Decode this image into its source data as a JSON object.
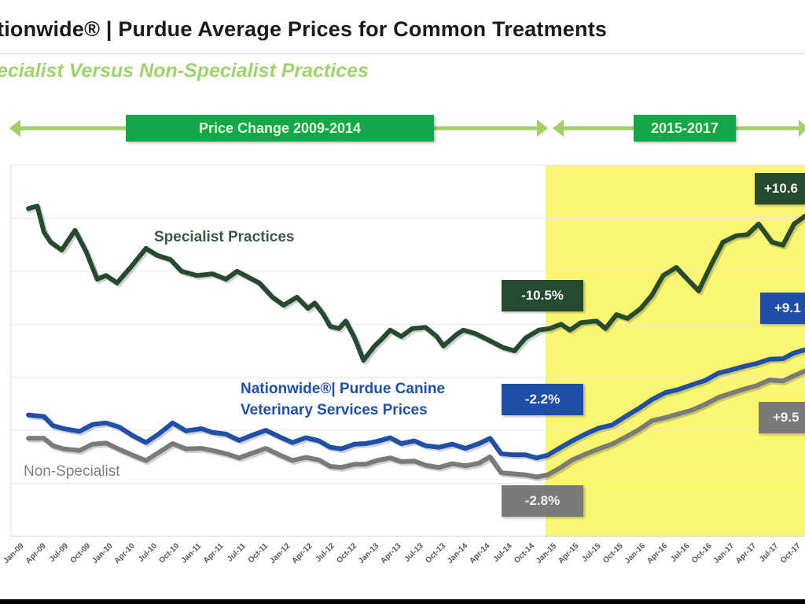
{
  "header": {
    "title": "tionwide® | Purdue Average Prices for Common Treatments",
    "subtitle": "ecialist Versus Non-Specialist Practices"
  },
  "periods": [
    {
      "label": "Price Change 2009-2014"
    },
    {
      "label": "2015-2017"
    }
  ],
  "colors": {
    "specialist": "#254a2f",
    "nationwide": "#1f4fa8",
    "non_specialist": "#7a7a7a",
    "highlight": "#fbf671",
    "period_bar": "#12a84a",
    "period_arrow": "#a3cf6b"
  },
  "chart_data": {
    "type": "line",
    "title": "Nationwide® | Purdue Average Prices for Common Treatments",
    "subtitle": "Specialist Versus Non-Specialist Practices",
    "xlabel": "",
    "ylabel": "",
    "y_units": "relative price index (axis values not shown)",
    "ylim": [
      30,
      100
    ],
    "grid": true,
    "x_ticks": [
      "Jan-09",
      "Apr-09",
      "Jul-09",
      "Oct-09",
      "Jan-10",
      "Apr-10",
      "Jul-10",
      "Oct-10",
      "Jan-11",
      "Apr-11",
      "Jul-11",
      "Oct-11",
      "Jan-12",
      "Apr-12",
      "Jul-12",
      "Oct-12",
      "Jan-13",
      "Apr-13",
      "Jul-13",
      "Oct-13",
      "Jan-14",
      "Apr-14",
      "Jul-14",
      "Oct-14",
      "Jan-15",
      "Apr-15",
      "Jul-15",
      "Oct-15",
      "Jan-16",
      "Apr-16",
      "Jul-16",
      "Oct-16",
      "Jan-17",
      "Apr-17",
      "Jul-17",
      "Oct-17"
    ],
    "x_range_quarters": [
      0,
      35.5
    ],
    "highlight_region": {
      "from_quarter": 23.8,
      "to_quarter": 36,
      "label": "2015-2017"
    },
    "series": [
      {
        "name": "Specialist Practices",
        "label": "Specialist Practices",
        "color_key": "specialist",
        "x": [
          0.5,
          0.9,
          1.2,
          1.5,
          2.0,
          2.6,
          3.1,
          3.6,
          4.0,
          4.5,
          5.1,
          5.8,
          6.3,
          6.9,
          7.4,
          8.1,
          8.8,
          9.4,
          9.9,
          10.4,
          10.9,
          11.5,
          12.0,
          12.6,
          13.1,
          13.4,
          13.8,
          14.1,
          14.5,
          14.8,
          15.2,
          15.6,
          16.1,
          16.4,
          16.8,
          17.3,
          17.8,
          18.4,
          18.9,
          19.2,
          19.8,
          20.1,
          20.6,
          21.2,
          21.9,
          22.4,
          22.9,
          23.5,
          24.0,
          24.5,
          24.9,
          25.4,
          26.1,
          26.5,
          27.0,
          27.5,
          28.1,
          28.6,
          29.1,
          29.7,
          30.1,
          30.7,
          31.3,
          31.8,
          32.4,
          32.9,
          33.4,
          34.0,
          34.5,
          35.0,
          35.5
        ],
        "values": [
          91.8,
          92.3,
          87.4,
          85.5,
          84.0,
          87.7,
          83.7,
          78.5,
          79.2,
          77.8,
          80.7,
          84.3,
          83.0,
          82.2,
          80.0,
          79.2,
          79.5,
          78.5,
          80.0,
          78.9,
          77.8,
          75.1,
          73.6,
          75.1,
          73.0,
          74.0,
          71.8,
          69.6,
          69.2,
          70.6,
          67.4,
          63.2,
          65.9,
          67.1,
          68.9,
          67.7,
          69.2,
          69.4,
          67.7,
          65.9,
          68.1,
          68.9,
          68.3,
          67.1,
          65.6,
          65.0,
          67.4,
          68.9,
          69.2,
          70.0,
          68.9,
          70.3,
          70.6,
          69.2,
          71.8,
          71.1,
          73.0,
          75.5,
          79.2,
          80.7,
          78.9,
          76.3,
          81.5,
          85.5,
          86.7,
          86.9,
          88.9,
          85.5,
          84.9,
          88.9,
          90.4
        ]
      },
      {
        "name": "Nationwide® | Purdue Canine Veterinary Services Prices",
        "label_line1": "Nationwide®| Purdue Canine",
        "label_line2": "Veterinary Services Prices",
        "color_key": "nationwide",
        "x": [
          0.5,
          1.2,
          1.6,
          2.1,
          2.8,
          3.4,
          4.0,
          4.6,
          5.2,
          5.8,
          6.4,
          7.0,
          7.6,
          8.3,
          8.8,
          9.4,
          10.0,
          10.6,
          11.2,
          11.8,
          12.4,
          13.0,
          13.6,
          14.1,
          14.6,
          15.2,
          15.7,
          16.2,
          16.8,
          17.3,
          17.9,
          18.4,
          19.0,
          19.6,
          20.2,
          20.8,
          21.3,
          21.8,
          22.3,
          22.9,
          23.4,
          23.9,
          24.5,
          25.0,
          25.6,
          26.2,
          26.8,
          27.4,
          28.0,
          28.6,
          29.2,
          29.8,
          30.4,
          31.0,
          31.6,
          32.1,
          32.7,
          33.3,
          33.9,
          34.5,
          35.0,
          35.5
        ],
        "values": [
          52.9,
          52.6,
          50.9,
          50.3,
          49.8,
          51.1,
          51.4,
          50.6,
          49.0,
          47.7,
          49.4,
          51.4,
          49.9,
          50.3,
          49.6,
          49.3,
          48.1,
          49.1,
          50.0,
          48.8,
          47.7,
          48.6,
          48.0,
          46.8,
          46.5,
          47.4,
          47.5,
          47.9,
          48.6,
          47.5,
          48.0,
          47.1,
          46.8,
          47.4,
          46.6,
          47.5,
          48.5,
          45.6,
          45.4,
          45.4,
          44.8,
          45.3,
          46.8,
          48.0,
          49.3,
          50.4,
          51.0,
          52.6,
          54.1,
          55.8,
          57.1,
          57.7,
          58.6,
          59.4,
          60.8,
          61.3,
          62.0,
          62.6,
          63.4,
          63.5,
          64.6,
          65.2
        ]
      },
      {
        "name": "Non-Specialist",
        "label": "Non-Specialist",
        "color_key": "non_specialist",
        "x": [
          0.5,
          1.2,
          1.6,
          2.1,
          2.8,
          3.4,
          4.0,
          4.6,
          5.2,
          5.8,
          6.4,
          7.0,
          7.6,
          8.3,
          8.8,
          9.4,
          10.0,
          10.6,
          11.2,
          11.8,
          12.4,
          13.0,
          13.6,
          14.1,
          14.6,
          15.2,
          15.7,
          16.2,
          16.8,
          17.3,
          17.9,
          18.4,
          19.0,
          19.6,
          20.2,
          20.8,
          21.3,
          21.8,
          22.3,
          22.9,
          23.4,
          23.9,
          24.5,
          25.0,
          25.6,
          26.2,
          26.8,
          27.4,
          28.0,
          28.6,
          29.2,
          29.8,
          30.4,
          31.0,
          31.6,
          32.1,
          32.7,
          33.3,
          33.9,
          34.5,
          35.0,
          35.5
        ],
        "values": [
          48.5,
          48.5,
          47.1,
          46.5,
          46.2,
          47.4,
          47.6,
          46.4,
          45.3,
          44.3,
          45.9,
          47.5,
          46.5,
          46.6,
          46.2,
          45.6,
          44.8,
          45.7,
          46.6,
          45.4,
          44.3,
          44.9,
          44.4,
          43.2,
          43.0,
          43.6,
          43.6,
          44.3,
          44.8,
          44.1,
          44.2,
          43.4,
          43.0,
          43.7,
          43.3,
          43.8,
          45.0,
          42.0,
          41.8,
          41.6,
          41.2,
          41.6,
          43.0,
          44.4,
          45.5,
          46.5,
          47.4,
          48.7,
          50.1,
          51.8,
          52.4,
          53.1,
          53.8,
          54.9,
          56.2,
          56.9,
          57.7,
          58.4,
          59.5,
          59.3,
          60.3,
          61.2
        ]
      }
    ],
    "annotations": [
      {
        "text": "-10.5%",
        "series": "Specialist Practices",
        "period": "2009-2014",
        "color_key": "specialist"
      },
      {
        "text": "-2.2%",
        "series": "Nationwide® | Purdue Canine Veterinary Services Prices",
        "period": "2009-2014",
        "color_key": "nationwide"
      },
      {
        "text": "-2.8%",
        "series": "Non-Specialist",
        "period": "2009-2014",
        "color_key": "non_specialist"
      },
      {
        "text": "+10.6",
        "series": "Specialist Practices",
        "period": "2015-2017",
        "color_key": "specialist"
      },
      {
        "text": "+9.1",
        "series": "Nationwide® | Purdue Canine Veterinary Services Prices",
        "period": "2015-2017",
        "color_key": "nationwide"
      },
      {
        "text": "+9.5",
        "series": "Non-Specialist",
        "period": "2015-2017",
        "color_key": "non_specialist"
      }
    ]
  }
}
